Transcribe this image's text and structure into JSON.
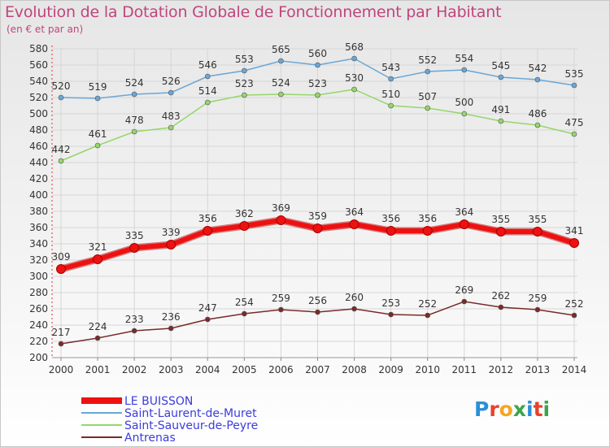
{
  "title": "Evolution de la Dotation Globale de Fonctionnement par Habitant",
  "subtitle": "(en € et par an)",
  "logo": {
    "text": "Proxiti",
    "letter_colors": [
      "#2b8fd6",
      "#e8412c",
      "#f5a623",
      "#3aa54b",
      "#2b8fd6",
      "#e8412c",
      "#3aa54b"
    ]
  },
  "chart_data": {
    "type": "line",
    "x": [
      2000,
      2001,
      2002,
      2003,
      2004,
      2005,
      2006,
      2007,
      2008,
      2009,
      2010,
      2011,
      2012,
      2013,
      2014
    ],
    "ylim": [
      200,
      580
    ],
    "yticks": [
      200,
      220,
      240,
      260,
      280,
      300,
      320,
      340,
      360,
      380,
      400,
      420,
      440,
      460,
      480,
      500,
      520,
      540,
      560,
      580
    ],
    "grid": true,
    "legend_position": "bottom-left",
    "series": [
      {
        "name": "LE BUISSON",
        "color": "#ee1111",
        "emphasis": true,
        "values": [
          309,
          321,
          335,
          339,
          356,
          362,
          369,
          359,
          364,
          356,
          356,
          364,
          355,
          355,
          341
        ]
      },
      {
        "name": "Saint-Laurent-de-Muret",
        "color": "#6aa6d6",
        "emphasis": false,
        "values": [
          520,
          519,
          524,
          526,
          546,
          553,
          565,
          560,
          568,
          543,
          552,
          554,
          545,
          542,
          535
        ]
      },
      {
        "name": "Saint-Sauveur-de-Peyre",
        "color": "#95d66a",
        "emphasis": false,
        "values": [
          442,
          461,
          478,
          483,
          514,
          523,
          524,
          523,
          530,
          510,
          507,
          500,
          491,
          486,
          475
        ]
      },
      {
        "name": "Antrenas",
        "color": "#7a2a2a",
        "emphasis": false,
        "values": [
          217,
          224,
          233,
          236,
          247,
          254,
          259,
          256,
          260,
          253,
          252,
          269,
          262,
          259,
          252
        ]
      }
    ]
  }
}
